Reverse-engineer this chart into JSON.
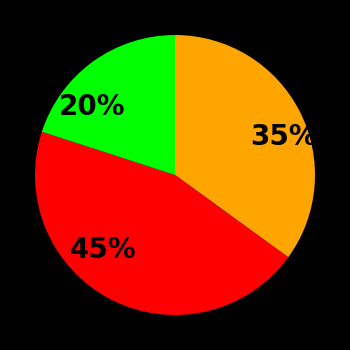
{
  "slices": [
    35,
    45,
    20
  ],
  "labels": [
    "35%",
    "45%",
    "20%"
  ],
  "colors": [
    "#FFA500",
    "#FF0000",
    "#00FF00"
  ],
  "background_color": "#000000",
  "startangle": 90,
  "label_fontsize": 20,
  "label_fontweight": "bold",
  "figsize": [
    3.5,
    3.5
  ],
  "dpi": 100
}
